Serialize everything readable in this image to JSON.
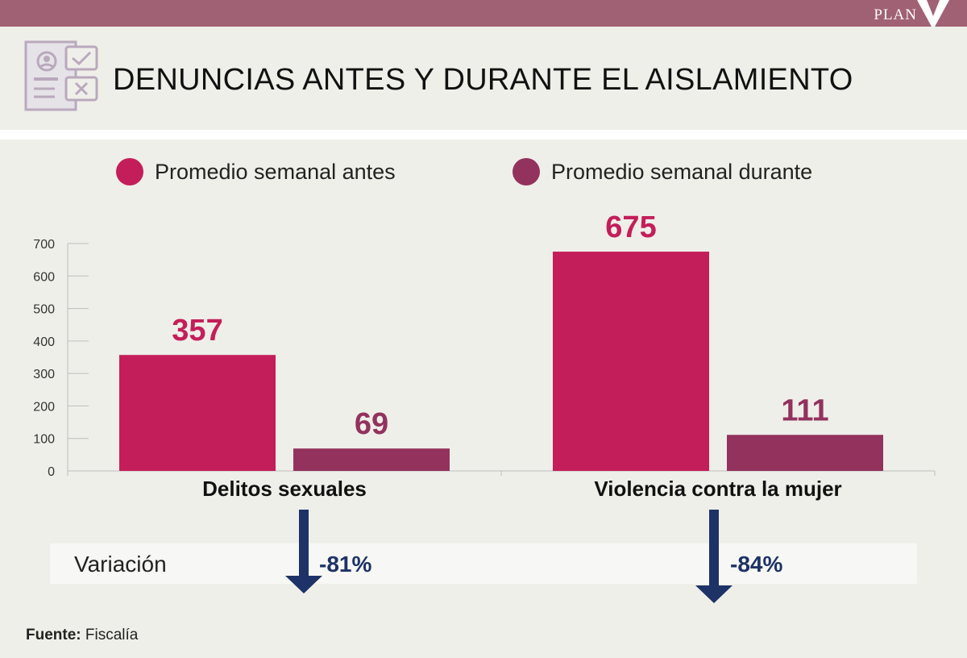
{
  "brand": "PLAN V",
  "title": "DENUNCIAS ANTES Y DURANTE EL AISLAMIENTO",
  "legend": [
    {
      "label": "Promedio semanal antes",
      "color": "#c41e5a"
    },
    {
      "label": "Promedio semanal durante",
      "color": "#92325d"
    }
  ],
  "chart_data": {
    "type": "bar",
    "title": "DENUNCIAS ANTES Y DURANTE EL AISLAMIENTO",
    "categories": [
      "Delitos sexuales",
      "Violencia contra la mujer"
    ],
    "series": [
      {
        "name": "Promedio semanal antes",
        "values": [
          357,
          675
        ],
        "color": "#c41e5a"
      },
      {
        "name": "Promedio semanal durante",
        "values": [
          69,
          111
        ],
        "color": "#92325d"
      }
    ],
    "ylim": [
      0,
      700
    ],
    "yticks": [
      0,
      100,
      200,
      300,
      400,
      500,
      600,
      700
    ],
    "xlabel": "",
    "ylabel": "",
    "legend_position": "top"
  },
  "variation": {
    "label": "Variación",
    "values": [
      "-81%",
      "-84%"
    ],
    "arrow_color": "#1d3266"
  },
  "source": {
    "label": "Fuente:",
    "value": "Fiscalía"
  }
}
